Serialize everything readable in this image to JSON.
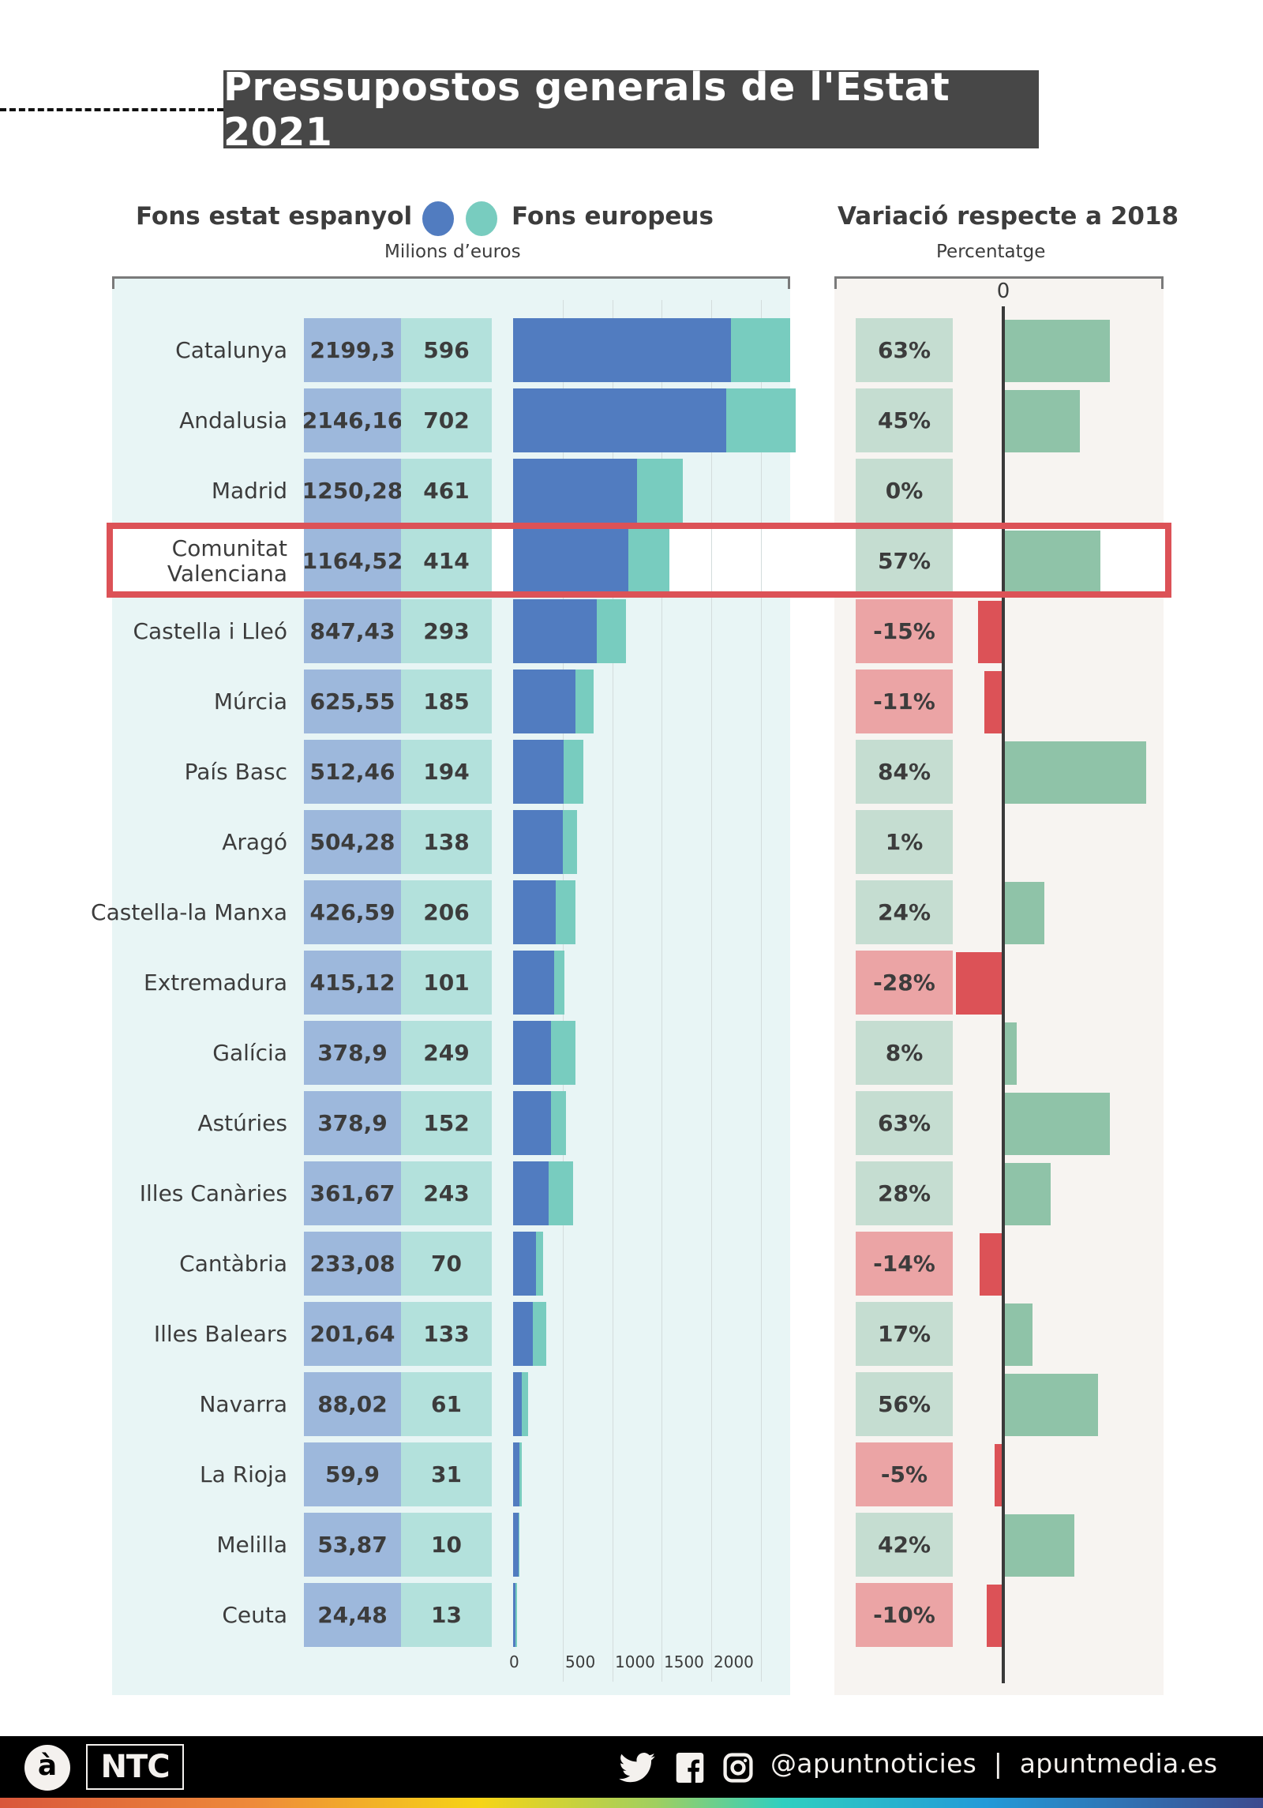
{
  "title": "Pressupostos generals de l'Estat 2021",
  "legend": {
    "state_label": "Fons estat espanyol",
    "eu_label": "Fons europeus",
    "unit": "Milions d’euros",
    "state_color": "#517cc0",
    "eu_color": "#78ccbf"
  },
  "variation": {
    "title": "Variació respecte a 2018",
    "unit": "Percentatge",
    "zero_label": "0",
    "positive_color": "#8fc3a8",
    "negative_color": "#dc5257"
  },
  "highlight_region": "Comunitat Valenciana",
  "chart_data": [
    {
      "type": "bar",
      "orientation": "horizontal",
      "stacked": true,
      "title": "Fons estat espanyol / Fons europeus",
      "xlabel": "Milions d’euros",
      "xlim": [
        0,
        2900
      ],
      "x_ticks": [
        0,
        500,
        1000,
        1500,
        2000
      ],
      "x_tick_labels": [
        "0",
        "500",
        "1000",
        "1500",
        "2000"
      ],
      "grid": true,
      "categories": [
        "Catalunya",
        "Andalusia",
        "Madrid",
        "Comunitat Valenciana",
        "Castella i Lleó",
        "Múrcia",
        "País Basc",
        "Aragó",
        "Castella-la Manxa",
        "Extremadura",
        "Galícia",
        "Astúries",
        "Illes Canàries",
        "Cantàbria",
        "Illes Balears",
        "Navarra",
        "La Rioja",
        "Melilla",
        "Ceuta"
      ],
      "category_labels": [
        [
          "Catalunya"
        ],
        [
          "Andalusia"
        ],
        [
          "Madrid"
        ],
        [
          "Comunitat",
          "Valenciana"
        ],
        [
          "Castella i Lleó"
        ],
        [
          "Múrcia"
        ],
        [
          "País Basc"
        ],
        [
          "Aragó"
        ],
        [
          "Castella-la Manxa"
        ],
        [
          "Extremadura"
        ],
        [
          "Galícia"
        ],
        [
          "Astúries"
        ],
        [
          "Illes Canàries"
        ],
        [
          "Cantàbria"
        ],
        [
          "Illes Balears"
        ],
        [
          "Navarra"
        ],
        [
          "La Rioja"
        ],
        [
          "Melilla"
        ],
        [
          "Ceuta"
        ]
      ],
      "series": [
        {
          "name": "Fons estat espanyol",
          "values": [
            2199.3,
            2146.16,
            1250.28,
            1164.52,
            847.43,
            625.55,
            512.46,
            504.28,
            426.59,
            415.12,
            378.9,
            378.9,
            361.67,
            233.08,
            201.64,
            88.02,
            59.9,
            53.87,
            24.48
          ],
          "labels": [
            "2199,3",
            "2146,16",
            "1250,28",
            "1164,52",
            "847,43",
            "625,55",
            "512,46",
            "504,28",
            "426,59",
            "415,12",
            "378,9",
            "378,9",
            "361,67",
            "233,08",
            "201,64",
            "88,02",
            "59,9",
            "53,87",
            "24,48"
          ]
        },
        {
          "name": "Fons europeus",
          "values": [
            596,
            702,
            461,
            414,
            293,
            185,
            194,
            138,
            206,
            101,
            249,
            152,
            243,
            70,
            133,
            61,
            31,
            10,
            13
          ],
          "labels": [
            "596",
            "702",
            "461",
            "414",
            "293",
            "185",
            "194",
            "138",
            "206",
            "101",
            "249",
            "152",
            "243",
            "70",
            "133",
            "61",
            "31",
            "10",
            "13"
          ]
        }
      ]
    },
    {
      "type": "bar",
      "orientation": "horizontal",
      "title": "Variació respecte a 2018",
      "xlabel": "Percentatge",
      "zero_label": "0",
      "categories": [
        "Catalunya",
        "Andalusia",
        "Madrid",
        "Comunitat Valenciana",
        "Castella i Lleó",
        "Múrcia",
        "País Basc",
        "Aragó",
        "Castella-la Manxa",
        "Extremadura",
        "Galícia",
        "Astúries",
        "Illes Canàries",
        "Cantàbria",
        "Illes Balears",
        "Navarra",
        "La Rioja",
        "Melilla",
        "Ceuta"
      ],
      "values": [
        63,
        45,
        0,
        57,
        -15,
        -11,
        84,
        1,
        24,
        -28,
        8,
        63,
        28,
        -14,
        17,
        56,
        -5,
        42,
        -10
      ],
      "labels": [
        "63%",
        "45%",
        "0%",
        "57%",
        "-15%",
        "-11%",
        "84%",
        "1%",
        "24%",
        "-28%",
        "8%",
        "63%",
        "28%",
        "-14%",
        "17%",
        "56%",
        "-5%",
        "42%",
        "-10%"
      ]
    }
  ],
  "footer": {
    "logo_letter": "à",
    "brand": "NTC",
    "social_icons": [
      "twitter-icon",
      "facebook-icon",
      "instagram-icon"
    ],
    "handle_text": "@apuntnoticies  |  apuntmedia.es"
  }
}
